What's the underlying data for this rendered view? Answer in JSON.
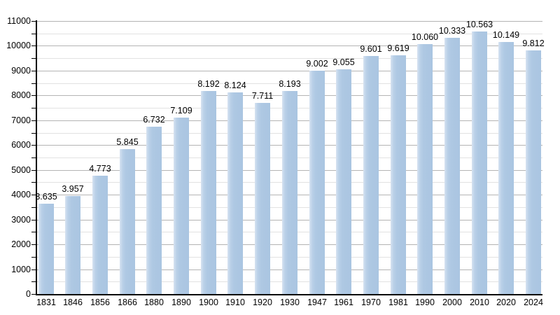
{
  "chart_data": {
    "type": "bar",
    "title": "",
    "xlabel": "",
    "ylabel": "",
    "categories": [
      "1831",
      "1846",
      "1856",
      "1866",
      "1880",
      "1890",
      "1900",
      "1910",
      "1920",
      "1930",
      "1947",
      "1961",
      "1970",
      "1981",
      "1990",
      "2000",
      "2010",
      "2020",
      "2024"
    ],
    "values": [
      3635,
      3957,
      4773,
      5845,
      6732,
      7109,
      8192,
      8124,
      7711,
      8193,
      9002,
      9055,
      9601,
      9619,
      10060,
      10333,
      10563,
      10149,
      9812
    ],
    "value_labels": [
      "3.635",
      "3.957",
      "4.773",
      "5.845",
      "6.732",
      "7.109",
      "8.192",
      "8.124",
      "7.711",
      "8.193",
      "9.002",
      "9.055",
      "9.601",
      "9.619",
      "10.060",
      "10.333",
      "10.563",
      "10.149",
      "9.812"
    ],
    "ylim": [
      0,
      11000
    ],
    "y_major_step": 1000,
    "y_minor_step": 500,
    "y_tick_labels": [
      "0",
      "1000",
      "2000",
      "3000",
      "4000",
      "5000",
      "6000",
      "7000",
      "8000",
      "9000",
      "10000",
      "11000"
    ],
    "grid": "on",
    "legend": "none",
    "colors": {
      "bar_main": "#aec8e3",
      "bar_edge_light": "#d7e3f1",
      "grid_major": "#b4b4b4",
      "grid_minor": "#e2e2e2",
      "axis": "#000000",
      "text": "#000000",
      "background": "#ffffff"
    }
  }
}
